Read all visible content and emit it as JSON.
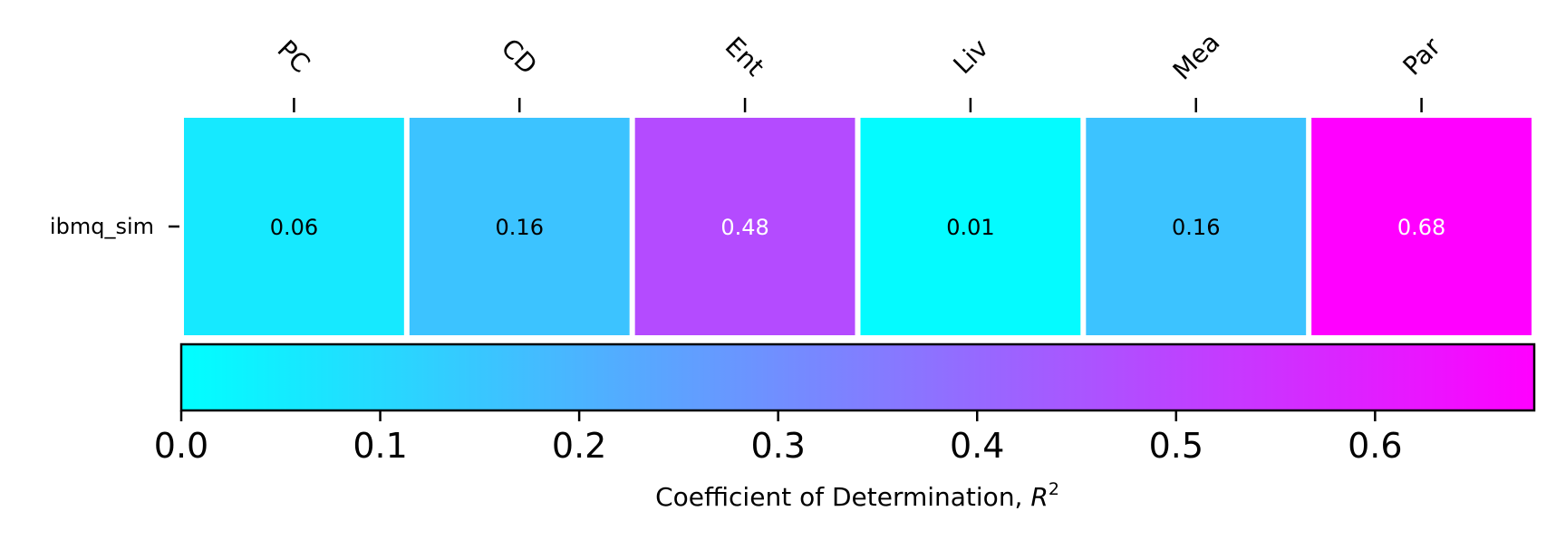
{
  "chart_data": {
    "type": "heatmap",
    "columns": [
      "PC",
      "CD",
      "Ent",
      "Liv",
      "Mea",
      "Par"
    ],
    "rows": [
      "ibmq_sim"
    ],
    "values": [
      [
        0.06,
        0.16,
        0.48,
        0.01,
        0.16,
        0.68
      ]
    ],
    "cell_labels": [
      [
        "0.06",
        "0.16",
        "0.48",
        "0.01",
        "0.16",
        "0.68"
      ]
    ],
    "colormap": "cool",
    "colormap_endpoints": [
      "#00ffff",
      "#ff00ff"
    ],
    "colorbar": {
      "range": [
        0,
        0.68
      ],
      "ticks": [
        0.0,
        0.1,
        0.2,
        0.3,
        0.4,
        0.5,
        0.6
      ],
      "tick_labels": [
        "0.0",
        "0.1",
        "0.2",
        "0.3",
        "0.4",
        "0.5",
        "0.6"
      ],
      "label_text": "Coefficient of Determination, ",
      "label_symbol": "R",
      "label_superscript": "2",
      "orientation": "horizontal"
    }
  }
}
